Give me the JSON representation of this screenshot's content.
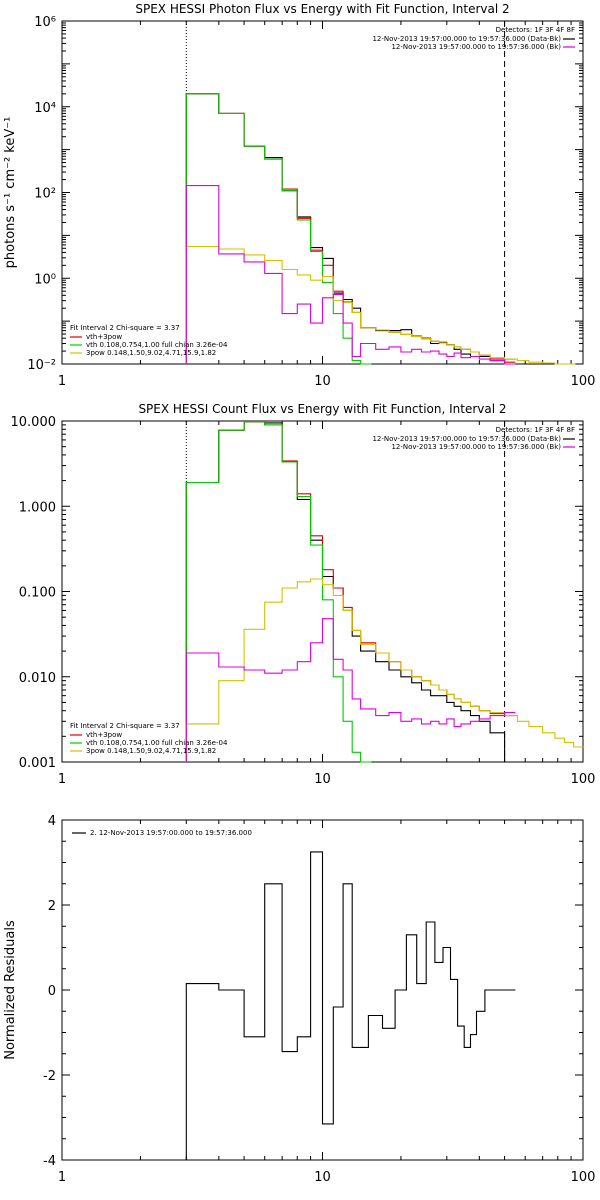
{
  "chart_data": [
    {
      "type": "line",
      "title": "SPEX HESSI Photon Flux vs Energy with Fit Function, Interval 2",
      "ylabel": "photons s⁻¹ cm⁻² keV⁻¹",
      "xlabel": "",
      "xscale": "log",
      "yscale": "log",
      "xlim": [
        1,
        100
      ],
      "ylim": [
        0.01,
        1000000
      ],
      "x_ticks": [
        "1",
        "10",
        "100"
      ],
      "y_ticks": [
        "10⁻²",
        "10⁰",
        "10²",
        "10⁴",
        "10⁶"
      ],
      "vlines": [
        {
          "x": 3,
          "style": "dotted"
        },
        {
          "x": 50,
          "style": "dashed"
        }
      ],
      "legend_top_right": {
        "header": "Detectors: 1F 3F 4F 8F",
        "entries": [
          {
            "text": "12-Nov-2013 19:57:00.000 to 19:57:36.000 (Data-Bk)",
            "color": "#000000"
          },
          {
            "text": "12-Nov-2013 19:57:00.000 to 19:57:36.000 (Bk)",
            "color": "#e000e0"
          }
        ]
      },
      "legend_bottom_left": {
        "header": "Fit Interval 2   Chi-square = 3.37",
        "entries": [
          {
            "text": "vth+3pow",
            "color": "#e00000"
          },
          {
            "text": "vth 0.108,0.754,1.00  full chian 3.26e-04",
            "color": "#00cc00"
          },
          {
            "text": "3pow 0.148,1.50,9.02,4.71,15.9,1.82",
            "color": "#d4c000"
          }
        ]
      },
      "series": [
        {
          "color": "#000000",
          "x": [
            3,
            4,
            5,
            6,
            7,
            8,
            9,
            10,
            11,
            12,
            13,
            14,
            16,
            18,
            20,
            22,
            24,
            26,
            28,
            30,
            32,
            34,
            37,
            40,
            44,
            50
          ],
          "values": [
            20000,
            7000,
            1200,
            650,
            110,
            27,
            5.2,
            2.9,
            0.45,
            0.32,
            0.2,
            0.07,
            0.06,
            0.06,
            0.063,
            0.045,
            0.04,
            0.03,
            0.032,
            0.028,
            0.022,
            0.017,
            0.015,
            0.015,
            0.012,
            0.013
          ]
        },
        {
          "color": "#e00000",
          "x": [
            3,
            4,
            5,
            6,
            7,
            8,
            9,
            10,
            11,
            12,
            13,
            14,
            16,
            18,
            20,
            22,
            24,
            26,
            28,
            30,
            32,
            34,
            37,
            40,
            44,
            50
          ],
          "values": [
            20000,
            7000,
            1200,
            600,
            120,
            25,
            4.5,
            2,
            0.5,
            0.28,
            0.16,
            0.07,
            0.062,
            0.055,
            0.049,
            0.044,
            0.039,
            0.034,
            0.031,
            0.028,
            0.025,
            0.022,
            0.019,
            0.016,
            0.013,
            0.011
          ]
        },
        {
          "color": "#00cc00",
          "x": [
            3,
            4,
            5,
            6,
            7,
            8,
            9,
            10,
            11,
            12,
            13,
            14
          ],
          "values": [
            20000,
            7000,
            1200,
            600,
            110,
            23,
            4.2,
            0.8,
            0.15,
            0.04,
            0.012,
            0.01
          ]
        },
        {
          "color": "#d4c000",
          "x": [
            3,
            4,
            5,
            6,
            7,
            8,
            9,
            10,
            11,
            12,
            13,
            14,
            16,
            18,
            20,
            22,
            24,
            26,
            28,
            30,
            32,
            34,
            37,
            40,
            44,
            50,
            56,
            62,
            70,
            78,
            85
          ],
          "values": [
            5.5,
            4.8,
            3.5,
            2.6,
            1.6,
            1.2,
            0.9,
            1.1,
            0.3,
            0.27,
            0.16,
            0.07,
            0.062,
            0.055,
            0.049,
            0.044,
            0.039,
            0.034,
            0.031,
            0.028,
            0.025,
            0.022,
            0.019,
            0.016,
            0.014,
            0.013,
            0.012,
            0.011,
            0.0105,
            0.01,
            0.01
          ]
        },
        {
          "color": "#e000e0",
          "x": [
            3,
            4,
            5,
            6,
            7,
            8,
            9,
            10,
            11,
            12,
            13,
            14,
            16,
            18,
            20,
            22,
            24,
            26,
            28,
            30,
            32,
            34,
            37,
            40,
            44,
            50
          ],
          "values": [
            145,
            3.7,
            2.4,
            1.3,
            0.15,
            0.25,
            0.09,
            0.35,
            0.42,
            0.09,
            0.015,
            0.03,
            0.022,
            0.025,
            0.019,
            0.022,
            0.019,
            0.02,
            0.017,
            0.015,
            0.018,
            0.014,
            0.015,
            0.013,
            0.012,
            0.01
          ]
        }
      ]
    },
    {
      "type": "line",
      "title": "SPEX HESSI Count Flux vs Energy with Fit Function, Interval 2",
      "xlabel": "",
      "ylabel": "",
      "xscale": "log",
      "yscale": "log",
      "xlim": [
        1,
        100
      ],
      "ylim": [
        0.001,
        10
      ],
      "x_ticks": [
        "1",
        "10",
        "100"
      ],
      "y_ticks": [
        "0.001",
        "0.010",
        "0.100",
        "1.000",
        "10.000"
      ],
      "vlines": [
        {
          "x": 3,
          "style": "dotted"
        },
        {
          "x": 50,
          "style": "dashed"
        }
      ],
      "legend_top_right": {
        "header": "Detectors: 1F 3F 4F 8F",
        "entries": [
          {
            "text": "12-Nov-2013 19:57:00.000 to 19:57:36.000 (Data-Bk)",
            "color": "#000000"
          },
          {
            "text": "12-Nov-2013 19:57:00.000 to 19:57:36.000 (Bk)",
            "color": "#e000e0"
          }
        ]
      },
      "legend_bottom_left": {
        "header": "Fit Interval 2   Chi-square = 3.37",
        "entries": [
          {
            "text": "vth+3pow",
            "color": "#e00000"
          },
          {
            "text": "vth 0.108,0.754,1.00  full chian 3.26e-04",
            "color": "#00cc00"
          },
          {
            "text": "3pow 0.148,1.50,9.02,4.71,15.9,1.82",
            "color": "#d4c000"
          }
        ]
      },
      "series": [
        {
          "color": "#000000",
          "x": [
            3,
            4,
            5,
            6,
            7,
            8,
            9,
            10,
            11,
            12,
            13,
            14,
            16,
            18,
            20,
            22,
            24,
            26,
            28,
            30,
            32,
            34,
            37,
            40,
            44,
            50
          ],
          "values": [
            1.9,
            7.8,
            9.8,
            9.5,
            3.3,
            1.2,
            0.4,
            0.15,
            0.11,
            0.06,
            0.03,
            0.02,
            0.015,
            0.012,
            0.01,
            0.0085,
            0.007,
            0.006,
            0.006,
            0.005,
            0.0045,
            0.004,
            0.0035,
            0.003,
            0.0022,
            0.001
          ]
        },
        {
          "color": "#e00000",
          "x": [
            3,
            4,
            5,
            6,
            7,
            8,
            9,
            10,
            11,
            12,
            13,
            14,
            16,
            18,
            20,
            22,
            24,
            26,
            28,
            30,
            32,
            34,
            37,
            40,
            44,
            50
          ],
          "values": [
            1.9,
            7.8,
            9.8,
            9.0,
            3.4,
            1.4,
            0.45,
            0.18,
            0.11,
            0.065,
            0.035,
            0.025,
            0.019,
            0.015,
            0.012,
            0.01,
            0.009,
            0.008,
            0.007,
            0.0062,
            0.0055,
            0.005,
            0.0045,
            0.004,
            0.0037,
            0.0035
          ]
        },
        {
          "color": "#00cc00",
          "x": [
            3,
            4,
            5,
            6,
            7,
            8,
            9,
            10,
            11,
            12,
            13,
            14
          ],
          "values": [
            1.9,
            7.8,
            9.8,
            9.0,
            3.3,
            1.3,
            0.35,
            0.08,
            0.01,
            0.003,
            0.0013,
            0.001
          ]
        },
        {
          "color": "#d4c000",
          "x": [
            3,
            4,
            5,
            6,
            7,
            8,
            9,
            10,
            11,
            12,
            13,
            14,
            16,
            18,
            20,
            22,
            24,
            26,
            28,
            30,
            32,
            34,
            37,
            40,
            44,
            50,
            56,
            62,
            70,
            78,
            85,
            92
          ],
          "values": [
            0.0028,
            0.009,
            0.036,
            0.075,
            0.11,
            0.13,
            0.14,
            0.12,
            0.09,
            0.06,
            0.035,
            0.024,
            0.019,
            0.015,
            0.012,
            0.01,
            0.009,
            0.008,
            0.007,
            0.0062,
            0.0055,
            0.005,
            0.0045,
            0.004,
            0.0038,
            0.0035,
            0.003,
            0.0026,
            0.0022,
            0.0019,
            0.0017,
            0.0015
          ]
        },
        {
          "color": "#e000e0",
          "x": [
            3,
            4,
            5,
            6,
            7,
            8,
            9,
            10,
            11,
            12,
            13,
            14,
            16,
            18,
            20,
            22,
            24,
            26,
            28,
            30,
            32,
            34,
            37,
            40,
            44,
            50
          ],
          "values": [
            0.019,
            0.013,
            0.012,
            0.011,
            0.012,
            0.015,
            0.025,
            0.048,
            0.016,
            0.012,
            0.0055,
            0.0042,
            0.0035,
            0.0038,
            0.003,
            0.0032,
            0.0028,
            0.003,
            0.0028,
            0.0032,
            0.0026,
            0.0028,
            0.003,
            0.0032,
            0.0035,
            0.0038
          ]
        }
      ]
    },
    {
      "type": "line",
      "title": "",
      "xlabel": "",
      "ylabel": "Normalized Residuals",
      "xscale": "log",
      "yscale": "linear",
      "xlim": [
        1,
        100
      ],
      "ylim": [
        -4,
        4
      ],
      "x_ticks": [
        "1",
        "10",
        "100"
      ],
      "y_ticks": [
        "-4",
        "-2",
        "0",
        "2",
        "4"
      ],
      "legend_top_left": {
        "entries": [
          {
            "text": "2. 12-Nov-2013 19:57:00.000 to 19:57:36.000",
            "color": "#000000"
          }
        ]
      },
      "series": [
        {
          "color": "#000000",
          "x": [
            3,
            3.5,
            4,
            4.5,
            5,
            5.5,
            6,
            6.5,
            7,
            7.5,
            8,
            8.5,
            9,
            9.5,
            10,
            10.5,
            11,
            11.5,
            12,
            12.5,
            13,
            14,
            15,
            16,
            17,
            18,
            19,
            20,
            21,
            22,
            23,
            24,
            25,
            26,
            27,
            28,
            29,
            30,
            31,
            32,
            33,
            34,
            35,
            36,
            37,
            38,
            39,
            40,
            42,
            44,
            46,
            48,
            50
          ],
          "values": [
            0.15,
            0.15,
            0.0,
            0.0,
            -1.1,
            -1.1,
            2.5,
            2.5,
            -1.45,
            -1.45,
            -1.1,
            -1.1,
            3.25,
            3.25,
            -3.15,
            -3.15,
            -0.4,
            -0.4,
            2.5,
            2.5,
            -1.35,
            -1.35,
            -0.6,
            -0.6,
            -0.9,
            -0.9,
            0.0,
            0.0,
            1.3,
            1.3,
            0.15,
            0.15,
            1.6,
            1.6,
            0.65,
            0.65,
            1.0,
            1.0,
            0.25,
            0.25,
            -0.85,
            -0.85,
            -1.35,
            -1.35,
            -1.05,
            -1.05,
            -0.5,
            -0.5,
            0.0,
            0.0,
            0.0,
            0.0,
            0.0
          ]
        }
      ]
    }
  ]
}
